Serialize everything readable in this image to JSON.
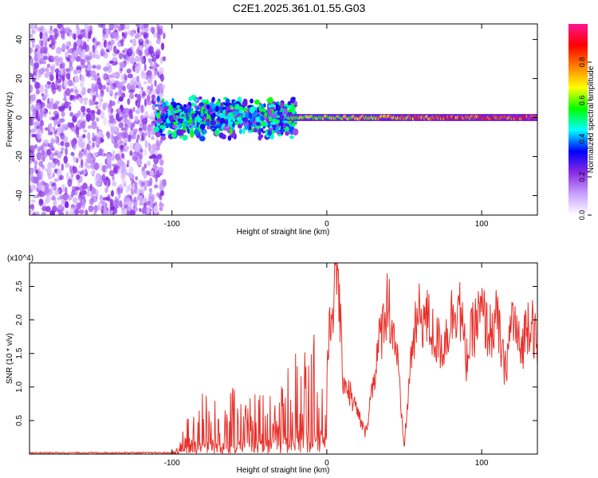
{
  "title": "C2E1.2025.361.01.55.G03",
  "chart_data": [
    {
      "type": "heatmap",
      "xlabel": "Height of straight line (km)",
      "ylabel": "Frequency (Hz)",
      "xlim": [
        -192,
        136
      ],
      "ylim": [
        -50,
        48
      ],
      "xticks": [
        -100,
        0,
        100
      ],
      "xtick_labels": [
        "-100",
        "0",
        "100"
      ],
      "yticks": [
        -40,
        -20,
        0,
        20,
        40
      ],
      "ytick_labels": [
        "-40",
        "-20",
        "0",
        "20",
        "40"
      ],
      "colorbar": {
        "label": "Normalized spectral amplitude",
        "range": [
          0,
          1
        ],
        "ticks": [
          0.0,
          0.2,
          0.4,
          0.6,
          0.8
        ],
        "tick_labels": [
          "0.0",
          "0.2",
          "0.4",
          "0.6",
          "0.8"
        ],
        "colors": [
          "#ffffff",
          "#c8a0ff",
          "#8a2be2",
          "#0000ff",
          "#00ffff",
          "#00ff00",
          "#ffff00",
          "#ff8000",
          "#ff0000",
          "#ff1493"
        ]
      },
      "regions": [
        {
          "name": "noise",
          "x_range": [
            -192,
            -105
          ],
          "freq_range": [
            -50,
            48
          ],
          "amplitude": 0.15
        },
        {
          "name": "scattered-signal",
          "x_range": [
            -110,
            -20
          ],
          "freq_range": [
            -12,
            10
          ],
          "amplitude": 0.3
        },
        {
          "name": "track",
          "x_range": [
            -25,
            136
          ],
          "freq_center": 0,
          "amplitude_start": 0.6,
          "amplitude_end": 0.95
        }
      ]
    },
    {
      "type": "line",
      "xlabel": "Height of straight line (km)",
      "ylabel": "SNR (10 * v/v)",
      "y_multiplier": "(x10^4)",
      "xlim": [
        -192,
        136
      ],
      "ylim": [
        0,
        2.85
      ],
      "xticks": [
        -100,
        0,
        100
      ],
      "xtick_labels": [
        "-100",
        "0",
        "100"
      ],
      "yticks": [
        0.5,
        1.0,
        1.5,
        2.0,
        2.5
      ],
      "ytick_labels": [
        "0.5",
        "1.0",
        "1.5",
        "2.0",
        "2.5"
      ],
      "color": "#e8302a",
      "series": [
        {
          "name": "SNR",
          "x": [
            -192,
            -150,
            -100,
            -95,
            -90,
            -85,
            -80,
            -75,
            -70,
            -65,
            -60,
            -55,
            -50,
            -45,
            -40,
            -35,
            -30,
            -25,
            -20,
            -15,
            -10,
            -5,
            0,
            5,
            7,
            10,
            15,
            20,
            25,
            30,
            35,
            38,
            40,
            42,
            45,
            48,
            50,
            55,
            60,
            65,
            70,
            75,
            80,
            85,
            90,
            95,
            100,
            105,
            110,
            115,
            120,
            125,
            130,
            133,
            136
          ],
          "values": [
            0.02,
            0.02,
            0.02,
            0.1,
            0.3,
            0.5,
            0.6,
            0.45,
            0.4,
            0.45,
            0.55,
            0.4,
            0.45,
            0.5,
            0.55,
            0.6,
            0.5,
            0.7,
            0.8,
            0.85,
            0.9,
            1.1,
            1.3,
            2.6,
            2.9,
            1.2,
            0.9,
            0.6,
            0.3,
            1.1,
            1.8,
            2.2,
            2.3,
            1.9,
            1.6,
            0.6,
            0.1,
            1.6,
            2.1,
            2.0,
            1.7,
            1.6,
            2.0,
            2.35,
            1.4,
            1.9,
            2.1,
            1.8,
            2.0,
            1.2,
            2.1,
            1.5,
            2.0,
            2.05,
            1.4
          ]
        }
      ]
    }
  ]
}
